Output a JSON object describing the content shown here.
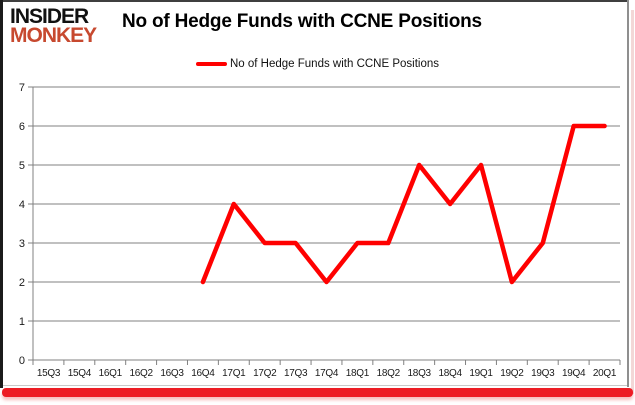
{
  "logo": {
    "line1": "INSIDER",
    "line2": "MONKEY"
  },
  "header": {
    "title": "No of Hedge Funds with CCNE Positions"
  },
  "legend": {
    "label": "No of Hedge Funds with CCNE Positions",
    "marker_color": "#ff0000"
  },
  "chart_data": {
    "type": "line",
    "title": "No of Hedge Funds with CCNE Positions",
    "categories": [
      "15Q3",
      "15Q4",
      "16Q1",
      "16Q2",
      "16Q3",
      "16Q4",
      "17Q1",
      "17Q2",
      "17Q3",
      "17Q4",
      "18Q1",
      "18Q2",
      "18Q3",
      "18Q4",
      "19Q1",
      "19Q2",
      "19Q3",
      "19Q4",
      "20Q1"
    ],
    "series": [
      {
        "name": "No of Hedge Funds with CCNE Positions",
        "color": "#ff0000",
        "values": [
          null,
          null,
          null,
          null,
          null,
          2,
          4,
          3,
          3,
          2,
          3,
          3,
          5,
          4,
          5,
          2,
          3,
          6,
          6
        ]
      }
    ],
    "xlabel": "",
    "ylabel": "",
    "ylim": [
      0,
      7
    ],
    "yticks": [
      0,
      1,
      2,
      3,
      4,
      5,
      6,
      7
    ],
    "grid": true,
    "legend_position": "top-center"
  },
  "colors": {
    "line": "#ff0000",
    "grid": "#808080",
    "axis": "#808080",
    "tick_label": "#1a1a1a",
    "title": "#000000",
    "logo_primary": "#111111",
    "logo_accent": "#c7492f",
    "bottom_band": "#ed1c24",
    "background": "#ffffff"
  }
}
